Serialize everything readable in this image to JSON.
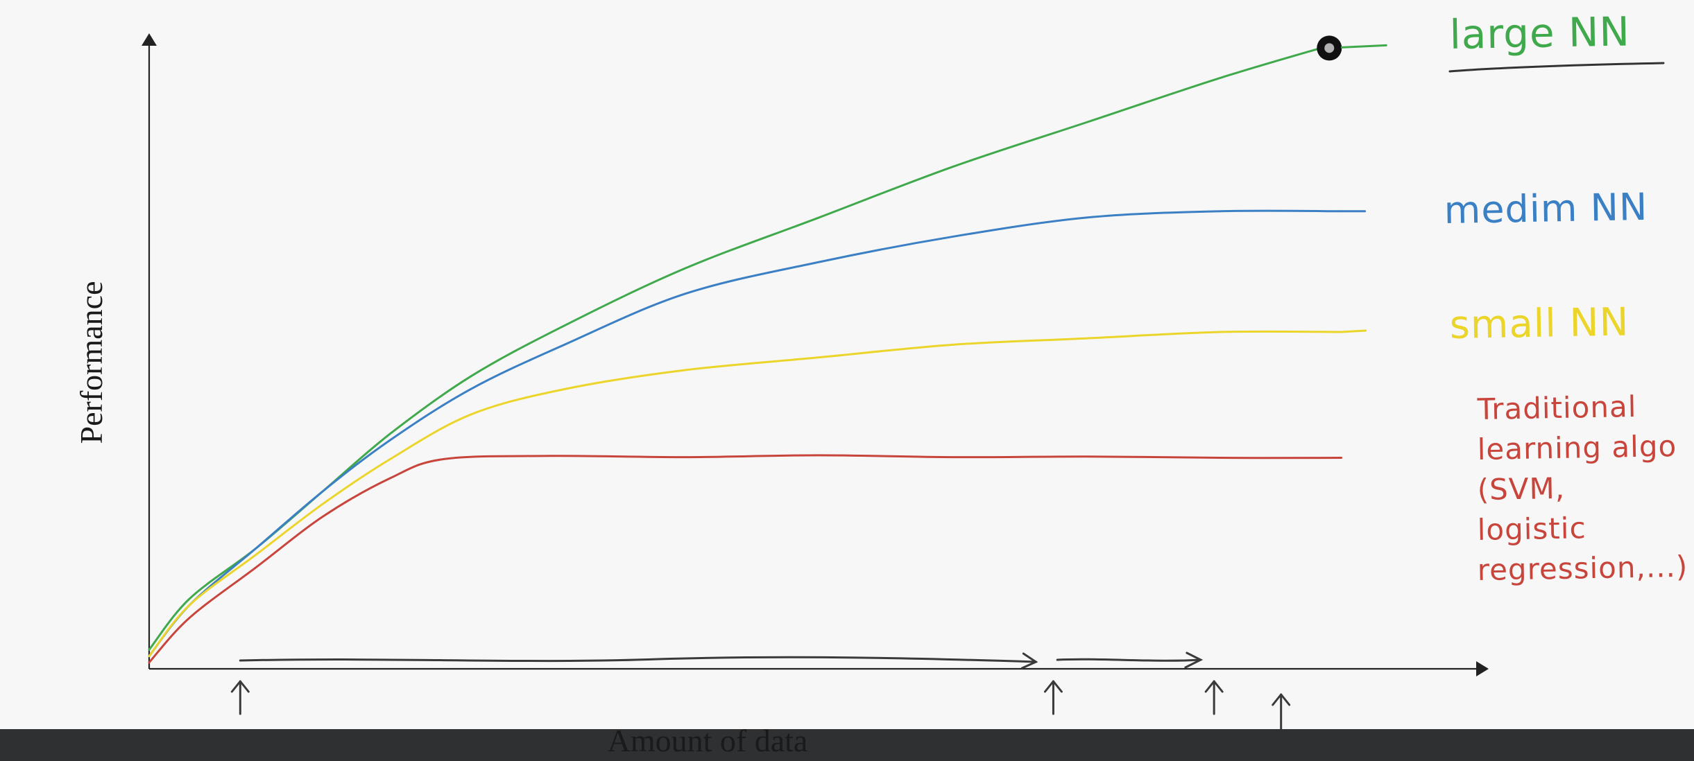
{
  "chart_data": {
    "type": "line",
    "title": "",
    "xlabel": "Amount of data",
    "ylabel": "Performance",
    "grid": false,
    "xlim": [
      0,
      100
    ],
    "ylim": [
      0,
      100
    ],
    "series": [
      {
        "name": "large NN",
        "color": "#3fa94c",
        "points": [
          [
            0,
            3
          ],
          [
            3,
            11
          ],
          [
            8,
            19
          ],
          [
            13,
            28
          ],
          [
            18,
            37
          ],
          [
            24,
            46
          ],
          [
            31,
            54
          ],
          [
            40,
            63
          ],
          [
            50,
            71
          ],
          [
            60,
            79
          ],
          [
            70,
            86
          ],
          [
            80,
            93
          ],
          [
            88,
            98
          ]
        ]
      },
      {
        "name": "medium NN",
        "color": "#3b7fc4",
        "points": [
          [
            0,
            2
          ],
          [
            3,
            10
          ],
          [
            8,
            19
          ],
          [
            13,
            28
          ],
          [
            18,
            36
          ],
          [
            24,
            44
          ],
          [
            31,
            51
          ],
          [
            40,
            59
          ],
          [
            50,
            64
          ],
          [
            60,
            68
          ],
          [
            70,
            71
          ],
          [
            80,
            72
          ],
          [
            89,
            72
          ]
        ]
      },
      {
        "name": "small NN",
        "color": "#ecd52a",
        "points": [
          [
            0,
            2
          ],
          [
            3,
            10
          ],
          [
            8,
            18
          ],
          [
            13,
            26
          ],
          [
            18,
            33
          ],
          [
            24,
            40
          ],
          [
            31,
            44
          ],
          [
            40,
            47
          ],
          [
            50,
            49
          ],
          [
            60,
            51
          ],
          [
            70,
            52
          ],
          [
            80,
            53
          ],
          [
            89,
            53
          ]
        ]
      },
      {
        "name": "Traditional learning algo (SVM, logistic regression,...)",
        "color": "#c8453c",
        "points": [
          [
            0,
            1
          ],
          [
            3,
            8
          ],
          [
            8,
            16
          ],
          [
            13,
            24
          ],
          [
            18,
            30
          ],
          [
            22,
            33
          ],
          [
            30,
            33.5
          ],
          [
            40,
            33.3
          ],
          [
            50,
            33.6
          ],
          [
            60,
            33.3
          ],
          [
            70,
            33.4
          ],
          [
            80,
            33.2
          ],
          [
            89,
            33.2
          ]
        ]
      }
    ],
    "labels": {
      "large": "large NN",
      "medium": "medim NN",
      "small": "small NN",
      "traditional": [
        "Traditional",
        "learning algo",
        "(SVM,",
        "logistic",
        "regression,...)"
      ]
    },
    "annotations": {
      "data_range_arrow": {
        "start_x": 6.8,
        "end_x": 78.5
      },
      "markers_x": [
        6.8,
        67.5,
        79.5,
        84.5
      ]
    }
  },
  "colors": {
    "background": "#f7f7f7",
    "axis": "#222222",
    "arrow": "#3a3a3a",
    "green": "#3fa94c",
    "blue": "#3b7fc4",
    "yellow": "#ecd52a",
    "red": "#c8453c",
    "bottom_bar": "#2f3032"
  }
}
